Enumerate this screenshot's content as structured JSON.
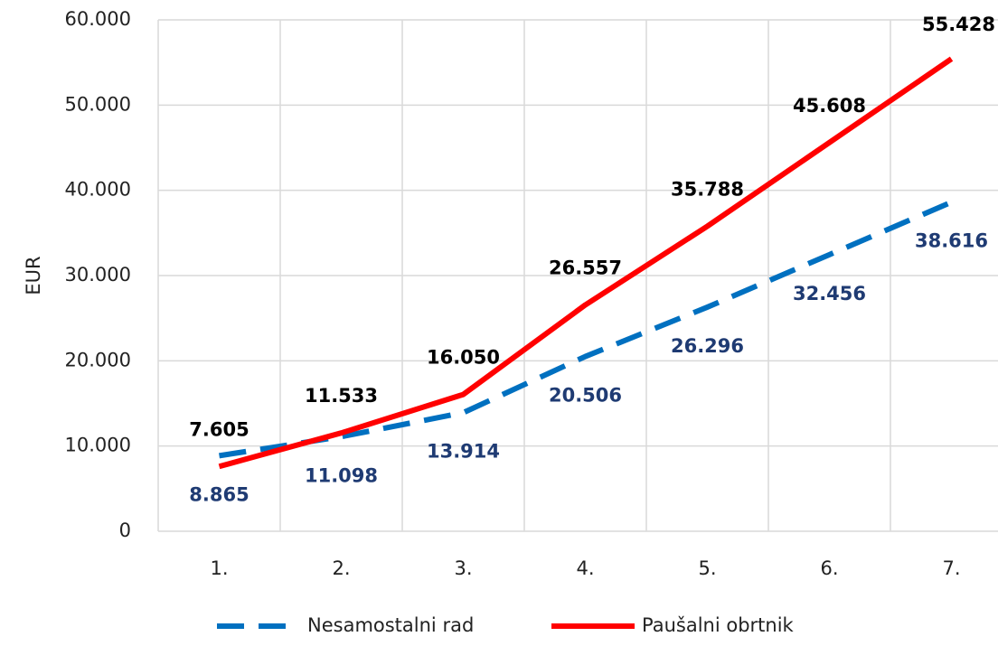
{
  "chart_data": {
    "type": "line",
    "y_label": "EUR",
    "categories": [
      "1.",
      "2.",
      "3.",
      "4.",
      "5.",
      "6.",
      "7."
    ],
    "series": [
      {
        "name": "Nesamostalni rad",
        "color": "#0070c0",
        "dashed": true,
        "label_color": "#1f3b73",
        "values": [
          8865,
          11098,
          13914,
          20506,
          26296,
          32456,
          38616
        ],
        "value_labels": [
          "8.865",
          "11.098",
          "13.914",
          "20.506",
          "26.296",
          "32.456",
          "38.616"
        ]
      },
      {
        "name": "Paušalni obrtnik",
        "color": "#ff0000",
        "dashed": false,
        "label_color": "#000000",
        "values": [
          7605,
          11533,
          16050,
          26557,
          35788,
          45608,
          55428
        ],
        "value_labels": [
          "7.605",
          "11.533",
          "16.050",
          "26.557",
          "35.788",
          "45.608",
          "55.428"
        ]
      }
    ],
    "ylim": [
      0,
      60000
    ],
    "yticks": [
      0,
      {
        "value": 10000,
        "label": "10.000"
      },
      {
        "value": 20000,
        "label": "20.000"
      },
      {
        "value": 30000,
        "label": "30.000"
      },
      {
        "value": 40000,
        "label": "40.000"
      },
      {
        "value": 50000,
        "label": "50.000"
      },
      {
        "value": 60000,
        "label": "60.000"
      }
    ],
    "grid": true,
    "legend": "bottom"
  }
}
